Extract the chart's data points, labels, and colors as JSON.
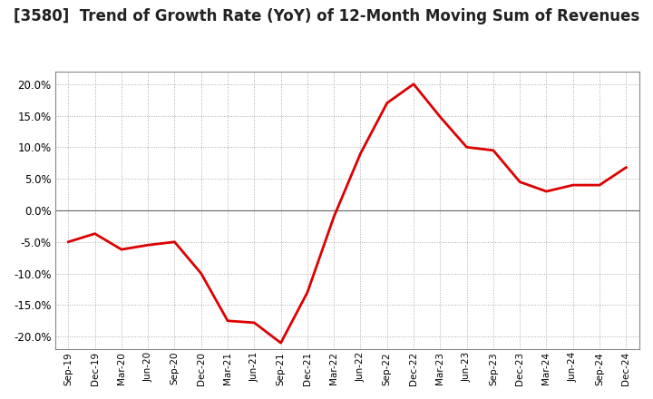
{
  "title": "[3580]  Trend of Growth Rate (YoY) of 12-Month Moving Sum of Revenues",
  "title_fontsize": 12,
  "line_color": "#dd0000",
  "background_color": "#ffffff",
  "grid_color": "#aaaaaa",
  "ylim": [
    -0.22,
    0.22
  ],
  "yticks": [
    -0.2,
    -0.15,
    -0.1,
    -0.05,
    0.0,
    0.05,
    0.1,
    0.15,
    0.2
  ],
  "dates": [
    "Sep-19",
    "Dec-19",
    "Mar-20",
    "Jun-20",
    "Sep-20",
    "Dec-20",
    "Mar-21",
    "Jun-21",
    "Sep-21",
    "Dec-21",
    "Mar-22",
    "Jun-22",
    "Sep-22",
    "Dec-22",
    "Mar-23",
    "Jun-23",
    "Sep-23",
    "Dec-23",
    "Mar-24",
    "Jun-24",
    "Sep-24",
    "Dec-24"
  ],
  "values": [
    -0.05,
    -0.037,
    -0.062,
    -0.055,
    -0.05,
    -0.1,
    -0.175,
    -0.178,
    -0.21,
    -0.13,
    -0.01,
    0.09,
    0.17,
    0.2,
    0.148,
    0.1,
    0.095,
    0.045,
    0.03,
    0.04,
    0.04,
    0.068
  ]
}
